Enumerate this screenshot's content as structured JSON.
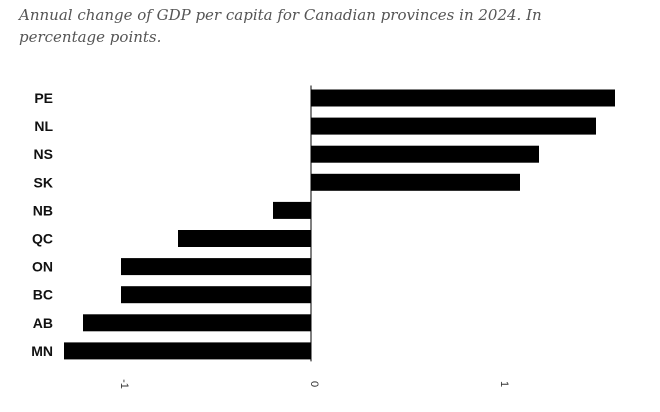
{
  "subtitle": "Annual change of GDP per capita for Canadian provinces in 2024. In percentage points.",
  "chart_data": {
    "type": "bar",
    "orientation": "horizontal",
    "title": "",
    "xlabel": "",
    "ylabel": "",
    "categories": [
      "PE",
      "NL",
      "NS",
      "SK",
      "NB",
      "QC",
      "ON",
      "BC",
      "AB",
      "MN"
    ],
    "values": [
      1.6,
      1.5,
      1.2,
      1.1,
      -0.2,
      -0.7,
      -1.0,
      -1.0,
      -1.2,
      -1.3
    ],
    "xlim": [
      -1.3,
      1.6
    ],
    "x_ticks": [
      -1,
      0,
      1
    ],
    "x_tick_labels": [
      "-1",
      "0",
      "1"
    ],
    "bar_color": "#000000",
    "grid": false,
    "legend": "none"
  }
}
